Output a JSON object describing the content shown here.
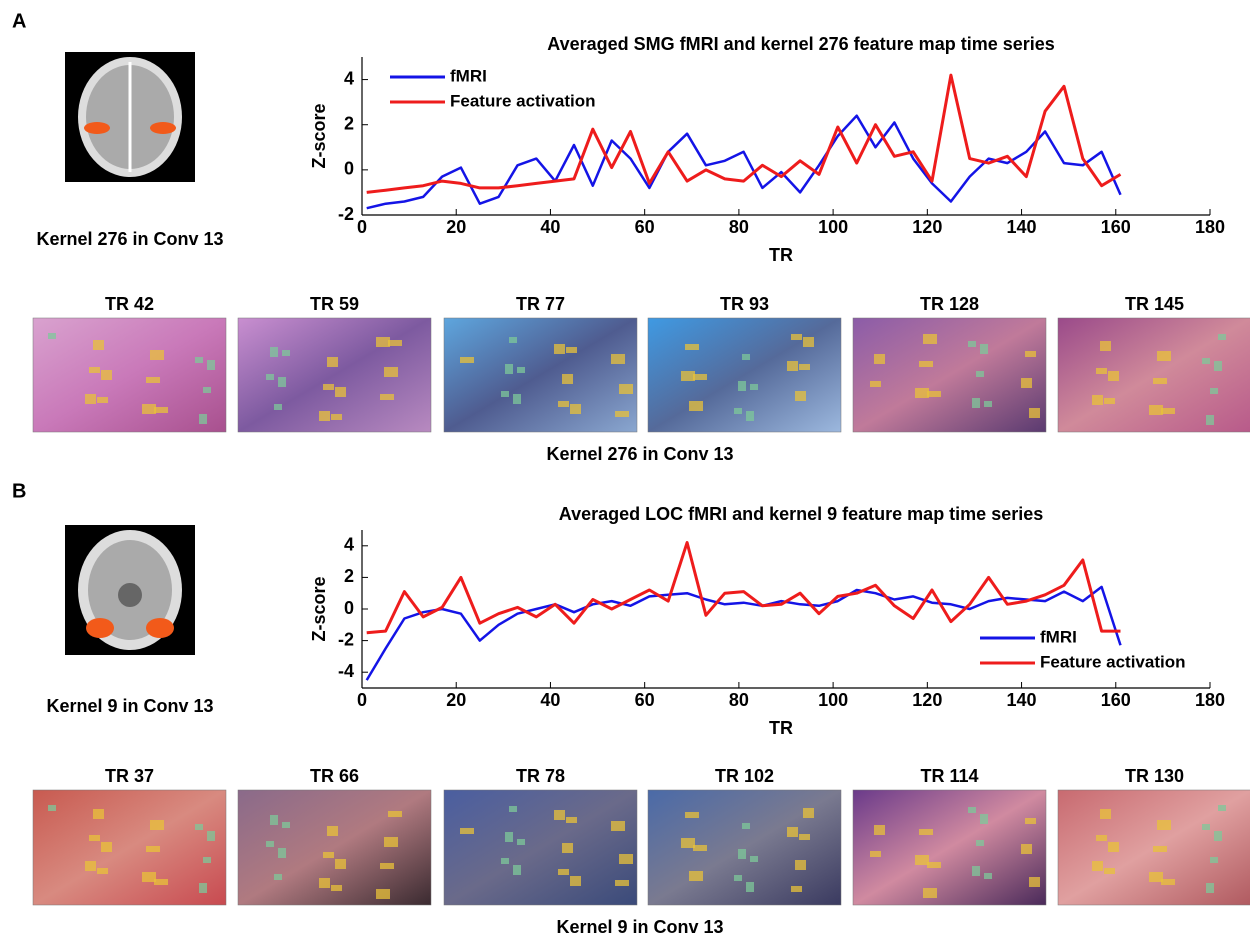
{
  "chart_data": [
    {
      "type": "line",
      "title": "Averaged SMG fMRI and kernel 276 feature map time series",
      "x_label": "TR",
      "y_label": "Z-score",
      "x": [
        1,
        5,
        9,
        13,
        17,
        21,
        25,
        29,
        33,
        37,
        41,
        45,
        49,
        53,
        57,
        61,
        65,
        69,
        73,
        77,
        81,
        85,
        89,
        93,
        97,
        101,
        105,
        109,
        113,
        117,
        121,
        125,
        129,
        133,
        137,
        141,
        145,
        149,
        153,
        157,
        161
      ],
      "series": [
        {
          "name": "fMRI",
          "color": "#1414e6",
          "values": [
            -1.7,
            -1.5,
            -1.4,
            -1.2,
            -0.3,
            0.1,
            -1.5,
            -1.2,
            0.2,
            0.5,
            -0.5,
            1.1,
            -0.7,
            1.3,
            0.5,
            -0.8,
            0.8,
            1.6,
            0.2,
            0.4,
            0.8,
            -0.8,
            -0.1,
            -1.0,
            0.2,
            1.5,
            2.4,
            1.0,
            2.1,
            0.5,
            -0.6,
            -1.4,
            -0.3,
            0.5,
            0.3,
            0.8,
            1.7,
            0.3,
            0.2,
            0.8,
            -1.1
          ]
        },
        {
          "name": "Feature activation",
          "color": "#ee1c1c",
          "values": [
            -1.0,
            -0.9,
            -0.8,
            -0.7,
            -0.5,
            -0.6,
            -0.8,
            -0.8,
            -0.7,
            -0.6,
            -0.5,
            -0.4,
            1.8,
            0.1,
            1.7,
            -0.6,
            0.8,
            -0.5,
            0.0,
            -0.4,
            -0.5,
            0.2,
            -0.3,
            0.4,
            -0.2,
            1.9,
            0.3,
            2.0,
            0.6,
            0.8,
            -0.5,
            4.2,
            0.5,
            0.3,
            0.6,
            -0.3,
            2.6,
            3.7,
            0.5,
            -0.7,
            -0.2
          ]
        }
      ],
      "xlim": [
        0,
        180
      ],
      "xticks": [
        0,
        20,
        40,
        60,
        80,
        100,
        120,
        140,
        160,
        180
      ],
      "ylim": [
        -2,
        5
      ],
      "yticks": [
        -2,
        0,
        2,
        4
      ],
      "legend": "upper left"
    },
    {
      "type": "line",
      "title": "Averaged LOC fMRI and kernel 9 feature map time series",
      "x_label": "TR",
      "y_label": "Z-score",
      "x": [
        1,
        5,
        9,
        13,
        17,
        21,
        25,
        29,
        33,
        37,
        41,
        45,
        49,
        53,
        57,
        61,
        65,
        69,
        73,
        77,
        81,
        85,
        89,
        93,
        97,
        101,
        105,
        109,
        113,
        117,
        121,
        125,
        129,
        133,
        137,
        141,
        145,
        149,
        153,
        157,
        161
      ],
      "series": [
        {
          "name": "fMRI",
          "color": "#1414e6",
          "values": [
            -4.5,
            -2.5,
            -0.6,
            -0.2,
            0.0,
            -0.3,
            -2.0,
            -1.0,
            -0.3,
            0.0,
            0.3,
            -0.2,
            0.3,
            0.5,
            0.2,
            0.8,
            0.9,
            1.0,
            0.6,
            0.3,
            0.4,
            0.2,
            0.5,
            0.3,
            0.2,
            0.5,
            1.2,
            1.0,
            0.6,
            0.8,
            0.4,
            0.3,
            0.0,
            0.5,
            0.7,
            0.6,
            0.5,
            1.1,
            0.5,
            1.4,
            -2.3
          ]
        },
        {
          "name": "Feature activation",
          "color": "#ee1c1c",
          "values": [
            -1.5,
            -1.4,
            1.1,
            -0.5,
            0.1,
            2.0,
            -0.9,
            -0.3,
            0.1,
            -0.5,
            0.3,
            -0.9,
            0.6,
            0.0,
            0.6,
            1.2,
            0.5,
            4.2,
            -0.4,
            1.0,
            1.1,
            0.2,
            0.3,
            1.0,
            -0.3,
            0.8,
            1.0,
            1.5,
            0.2,
            -0.6,
            1.2,
            -0.8,
            0.3,
            2.0,
            0.3,
            0.5,
            0.9,
            1.5,
            3.1,
            -1.4,
            -1.4
          ]
        }
      ],
      "xlim": [
        0,
        180
      ],
      "xticks": [
        0,
        20,
        40,
        60,
        80,
        100,
        120,
        140,
        160,
        180
      ],
      "ylim": [
        -5,
        5
      ],
      "yticks": [
        -4,
        -2,
        0,
        2,
        4
      ],
      "legend": "lower right"
    }
  ],
  "panels": [
    {
      "label": "A",
      "brain_caption": "Kernel 276 in Conv 13",
      "frames": [
        "TR 42",
        "TR 59",
        "TR 77",
        "TR 93",
        "TR 128",
        "TR 145"
      ],
      "frames_caption": "Kernel 276 in Conv 13"
    },
    {
      "label": "B",
      "brain_caption": "Kernel 9 in Conv 13",
      "frames": [
        "TR 37",
        "TR 66",
        "TR 78",
        "TR 102",
        "TR 114",
        "TR 130"
      ],
      "frames_caption": "Kernel 9 in Conv 13"
    }
  ]
}
